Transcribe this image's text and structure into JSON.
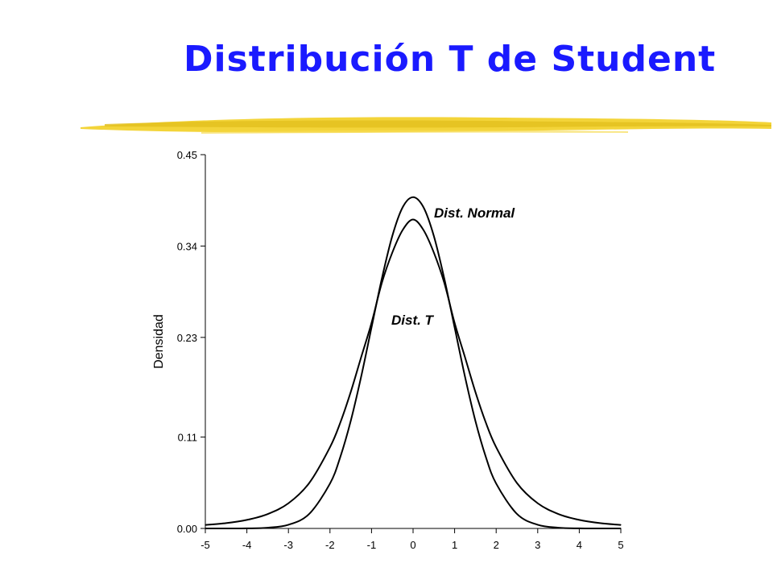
{
  "slide": {
    "title": "Distribución T de Student",
    "accent_color": "#1a1aff",
    "underline_color": "#f2d22e"
  },
  "chart_data": {
    "type": "line",
    "title": "",
    "xlabel": "",
    "ylabel": "Densidad",
    "xlim": [
      -5,
      5
    ],
    "ylim": [
      0,
      0.45
    ],
    "x_ticks": [
      "-5",
      "-4",
      "-3",
      "-2",
      "-1",
      "0",
      "1",
      "2",
      "3",
      "4",
      "5"
    ],
    "y_ticks": [
      "0.00",
      "0.11",
      "0.23",
      "0.34",
      "0.45"
    ],
    "y_tick_values": [
      0.0,
      0.11,
      0.23,
      0.34,
      0.45
    ],
    "grid": false,
    "series": [
      {
        "name": "Dist. Normal",
        "x": [
          -5,
          -4.5,
          -4,
          -3.5,
          -3,
          -2.5,
          -2,
          -1.75,
          -1.5,
          -1.25,
          -1,
          -0.75,
          -0.5,
          -0.25,
          0,
          0.25,
          0.5,
          0.75,
          1,
          1.25,
          1.5,
          1.75,
          2,
          2.5,
          3,
          3.5,
          4,
          4.5,
          5
        ],
        "y": [
          0.0,
          0.0,
          0.0001,
          0.0009,
          0.0044,
          0.0175,
          0.054,
          0.0863,
          0.1295,
          0.1826,
          0.242,
          0.3011,
          0.3521,
          0.3867,
          0.3989,
          0.3867,
          0.3521,
          0.3011,
          0.242,
          0.1826,
          0.1295,
          0.0863,
          0.054,
          0.0175,
          0.0044,
          0.0009,
          0.0001,
          0.0,
          0.0
        ]
      },
      {
        "name": "Dist. T",
        "x": [
          -5,
          -4.5,
          -4,
          -3.5,
          -3,
          -2.5,
          -2,
          -1.75,
          -1.5,
          -1.25,
          -1,
          -0.75,
          -0.5,
          -0.25,
          0,
          0.25,
          0.5,
          0.75,
          1,
          1.25,
          1.5,
          1.75,
          2,
          2.5,
          3,
          3.5,
          4,
          4.5,
          5
        ],
        "y": [
          0.0042,
          0.0064,
          0.0103,
          0.0173,
          0.0303,
          0.0547,
          0.0978,
          0.1276,
          0.1643,
          0.2061,
          0.2474,
          0.2959,
          0.3321,
          0.3593,
          0.3719,
          0.3593,
          0.3321,
          0.2959,
          0.2474,
          0.2061,
          0.1643,
          0.1276,
          0.0978,
          0.0547,
          0.0303,
          0.0173,
          0.0103,
          0.0064,
          0.0042
        ]
      }
    ],
    "annotations": [
      {
        "text": "Dist. Normal",
        "x": 0.5,
        "y": 0.38
      },
      {
        "text": "Dist. T",
        "x": -0.5,
        "y": 0.255
      }
    ]
  }
}
